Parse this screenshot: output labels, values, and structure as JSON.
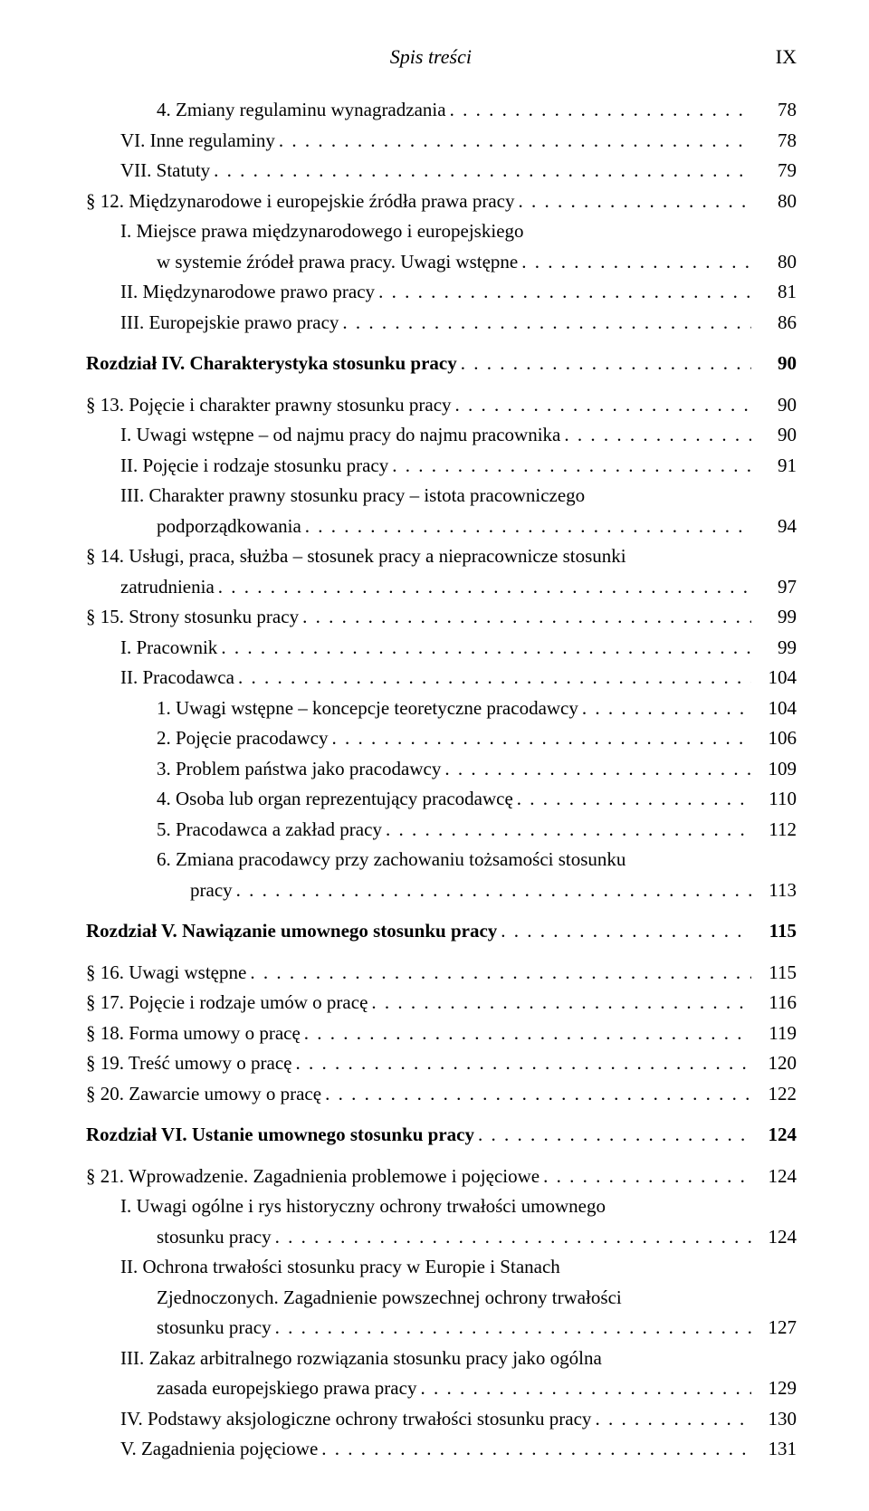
{
  "header": {
    "title": "Spis treści",
    "page": "IX"
  },
  "lines": [
    {
      "type": "line",
      "indent": 2,
      "label": "4. Zmiany regulaminu wynagradzania",
      "page": "78"
    },
    {
      "type": "line",
      "indent": 1,
      "label": "VI. Inne regulaminy",
      "page": "78"
    },
    {
      "type": "line",
      "indent": 1,
      "label": "VII. Statuty",
      "page": "79"
    },
    {
      "type": "line",
      "indent": 0,
      "label": "§ 12. Międzynarodowe i europejskie źródła prawa pracy",
      "page": "80"
    },
    {
      "type": "wrap",
      "indent": 1,
      "l1": "I. Miejsce prawa międzynarodowego i europejskiego",
      "l2indent": 2,
      "l2": "w systemie źródeł prawa pracy. Uwagi wstępne",
      "page": "80"
    },
    {
      "type": "line",
      "indent": 1,
      "label": "II. Międzynarodowe prawo pracy",
      "page": "81"
    },
    {
      "type": "line",
      "indent": 1,
      "label": "III. Europejskie prawo pracy",
      "page": "86"
    },
    {
      "type": "line",
      "gap": true,
      "indent": 0,
      "bold": true,
      "label": "Rozdział IV. Charakterystyka stosunku pracy",
      "page": "90"
    },
    {
      "type": "line",
      "gap": true,
      "indent": 0,
      "label": "§ 13. Pojęcie i charakter prawny stosunku pracy",
      "page": "90"
    },
    {
      "type": "line",
      "indent": 1,
      "label": "I. Uwagi wstępne – od najmu pracy do najmu pracownika",
      "page": "90"
    },
    {
      "type": "line",
      "indent": 1,
      "label": "II. Pojęcie i rodzaje stosunku pracy",
      "page": "91"
    },
    {
      "type": "wrap",
      "indent": 1,
      "l1": "III. Charakter prawny stosunku pracy – istota pracowniczego",
      "l2indent": 2,
      "l2": "podporządkowania",
      "page": "94"
    },
    {
      "type": "wrap",
      "indent": 0,
      "l1": "§ 14. Usługi, praca, służba – stosunek pracy a niepracownicze stosunki",
      "l2indent": 1,
      "l2": "zatrudnienia",
      "page": "97"
    },
    {
      "type": "line",
      "indent": 0,
      "label": "§ 15. Strony stosunku pracy",
      "page": "99"
    },
    {
      "type": "line",
      "indent": 1,
      "label": "I. Pracownik",
      "page": "99"
    },
    {
      "type": "line",
      "indent": 1,
      "label": "II. Pracodawca",
      "page": "104"
    },
    {
      "type": "line",
      "indent": 2,
      "label": "1. Uwagi wstępne – koncepcje teoretyczne pracodawcy",
      "page": "104"
    },
    {
      "type": "line",
      "indent": 2,
      "label": "2. Pojęcie pracodawcy",
      "page": "106"
    },
    {
      "type": "line",
      "indent": 2,
      "label": "3. Problem państwa jako pracodawcy",
      "page": "109"
    },
    {
      "type": "line",
      "indent": 2,
      "label": "4. Osoba lub organ reprezentujący pracodawcę",
      "page": "110"
    },
    {
      "type": "line",
      "indent": 2,
      "label": "5. Pracodawca a zakład pracy",
      "page": "112"
    },
    {
      "type": "wrap",
      "indent": 2,
      "l1": "6. Zmiana pracodawcy przy zachowaniu tożsamości stosunku",
      "l2indent": 3,
      "l2": "pracy",
      "page": "113"
    },
    {
      "type": "line",
      "gap": true,
      "indent": 0,
      "bold": true,
      "label": "Rozdział V. Nawiązanie umownego stosunku pracy",
      "page": "115"
    },
    {
      "type": "line",
      "gap": true,
      "indent": 0,
      "label": "§ 16. Uwagi wstępne",
      "page": "115"
    },
    {
      "type": "line",
      "indent": 0,
      "label": "§ 17. Pojęcie i rodzaje umów o pracę",
      "page": "116"
    },
    {
      "type": "line",
      "indent": 0,
      "label": "§ 18. Forma umowy o pracę",
      "page": "119"
    },
    {
      "type": "line",
      "indent": 0,
      "label": "§ 19. Treść umowy o pracę",
      "page": "120"
    },
    {
      "type": "line",
      "indent": 0,
      "label": "§ 20. Zawarcie umowy o pracę",
      "page": "122"
    },
    {
      "type": "line",
      "gap": true,
      "indent": 0,
      "bold": true,
      "label": "Rozdział VI. Ustanie umownego stosunku pracy",
      "page": "124"
    },
    {
      "type": "line",
      "gap": true,
      "indent": 0,
      "label": "§ 21. Wprowadzenie. Zagadnienia problemowe i pojęciowe",
      "page": "124"
    },
    {
      "type": "wrap",
      "indent": 1,
      "l1": "I. Uwagi ogólne i rys historyczny ochrony trwałości umownego",
      "l2indent": 2,
      "l2": "stosunku pracy",
      "page": "124"
    },
    {
      "type": "wrap3",
      "indent": 1,
      "l1": "II. Ochrona trwałości stosunku pracy w Europie i Stanach",
      "l2indent": 2,
      "l2": "Zjednoczonych. Zagadnienie powszechnej ochrony trwałości",
      "l3indent": 2,
      "l3": "stosunku pracy",
      "page": "127"
    },
    {
      "type": "wrap",
      "indent": 1,
      "l1": "III. Zakaz arbitralnego rozwiązania stosunku pracy jako ogólna",
      "l2indent": 2,
      "l2": "zasada europejskiego prawa pracy",
      "page": "129"
    },
    {
      "type": "line",
      "indent": 1,
      "label": "IV. Podstawy aksjologiczne ochrony trwałości stosunku pracy",
      "page": "130"
    },
    {
      "type": "line",
      "indent": 1,
      "label": "V. Zagadnienia pojęciowe",
      "page": "131"
    }
  ]
}
